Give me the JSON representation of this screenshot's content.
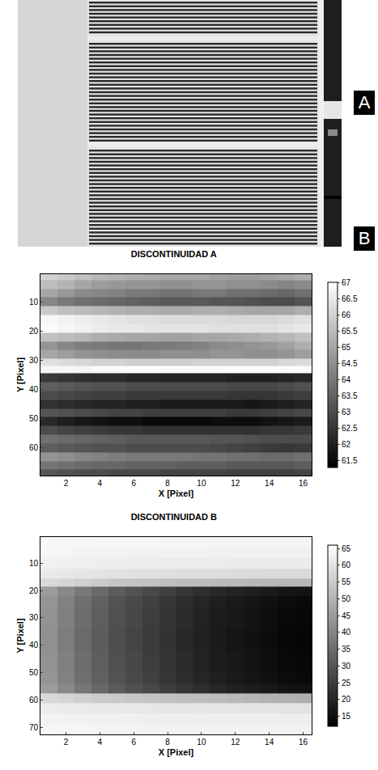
{
  "panel_labels": [
    "A",
    "B"
  ],
  "chart_data": [
    {
      "type": "heatmap",
      "title": "DISCONTINUIDAD A",
      "xlabel": "X [Pixel]",
      "ylabel": "Y [Pixel]",
      "xlim": [
        0.5,
        16.5
      ],
      "xticks": [
        2,
        4,
        6,
        8,
        10,
        12,
        14,
        16
      ],
      "ylim": [
        69.5,
        0.5
      ],
      "yticks": [
        10,
        20,
        30,
        40,
        50,
        60
      ],
      "x": [
        1,
        2,
        3,
        4,
        5,
        6,
        7,
        8,
        9,
        10,
        11,
        12,
        13,
        14,
        15,
        16
      ],
      "y": [
        1,
        4,
        7,
        10,
        13,
        16,
        19,
        22,
        25,
        28,
        31,
        33,
        36,
        39,
        42,
        45,
        48,
        51,
        54,
        57,
        60,
        63,
        66,
        69
      ],
      "z": [
        [
          66,
          65.8,
          65.6,
          65.4,
          65.3,
          65.2,
          65.1,
          65,
          65,
          65,
          64.9,
          64.8,
          64.8,
          64.9,
          65,
          65.2
        ],
        [
          65.5,
          65.3,
          65,
          64.8,
          64.7,
          64.6,
          64.6,
          64.5,
          64.5,
          64.6,
          64.6,
          64.5,
          64.5,
          64.4,
          64.3,
          64.4
        ],
        [
          65,
          64.7,
          64.4,
          64.3,
          64.2,
          64,
          64,
          63.9,
          63.9,
          64,
          64,
          63.8,
          63.8,
          63.7,
          63.6,
          63.8
        ],
        [
          64.3,
          64,
          63.8,
          63.7,
          63.6,
          63.5,
          63.4,
          63.3,
          63.3,
          63.3,
          63.2,
          63.2,
          63.1,
          63,
          63,
          63.2
        ],
        [
          65.8,
          65.6,
          65.5,
          65.4,
          65.3,
          65.2,
          65.2,
          65.1,
          65.1,
          65.2,
          65.2,
          65.1,
          65,
          65,
          65,
          65.2
        ],
        [
          66.8,
          66.7,
          66.6,
          66.5,
          66.4,
          66.3,
          66.3,
          66.2,
          66.2,
          66.2,
          66.2,
          66.1,
          66.1,
          66.1,
          66.2,
          66.3
        ],
        [
          66.9,
          66.8,
          66.7,
          66.6,
          66.5,
          66.5,
          66.4,
          66.4,
          66.4,
          66.4,
          66.3,
          66.3,
          66.3,
          66.3,
          66.4,
          66.5
        ],
        [
          65.6,
          65.5,
          65.4,
          65.2,
          65.1,
          65,
          65,
          64.9,
          64.9,
          65,
          65,
          65.1,
          65.2,
          65.3,
          65.4,
          65.6
        ],
        [
          64.6,
          64.3,
          64.1,
          64,
          63.9,
          63.9,
          64,
          64,
          64.1,
          64.2,
          64.4,
          64.5,
          64.6,
          64.7,
          64.9,
          65.2
        ],
        [
          65,
          64.8,
          64.6,
          64.5,
          64.4,
          64.4,
          64.4,
          64.5,
          64.5,
          64.5,
          64.6,
          64.6,
          64.5,
          64.5,
          64.6,
          64.8
        ],
        [
          66.3,
          66.2,
          66.1,
          66,
          66,
          65.9,
          65.9,
          65.9,
          65.9,
          66,
          66,
          66,
          66,
          66,
          66.1,
          66.2
        ],
        [
          66.8,
          66.8,
          66.8,
          66.9,
          66.9,
          66.9,
          66.9,
          66.9,
          66.9,
          66.9,
          66.9,
          66.9,
          66.9,
          66.9,
          66.9,
          66.9
        ],
        [
          62.6,
          62.5,
          62.4,
          62.3,
          62.3,
          62.2,
          62.2,
          62.1,
          62.1,
          62.1,
          62.1,
          62,
          62,
          62,
          62.1,
          62.2
        ],
        [
          63.4,
          63.3,
          63.2,
          63.1,
          63.1,
          63,
          63,
          63,
          63,
          63,
          63,
          62.9,
          62.9,
          62.9,
          63,
          63.1
        ],
        [
          63,
          62.9,
          62.8,
          62.7,
          62.7,
          62.6,
          62.6,
          62.6,
          62.6,
          62.6,
          62.6,
          62.5,
          62.5,
          62.5,
          62.6,
          62.7
        ],
        [
          62.4,
          62.3,
          62.2,
          62.1,
          62.1,
          62,
          62,
          61.9,
          61.9,
          61.9,
          61.9,
          61.9,
          61.8,
          61.9,
          62,
          62.1
        ],
        [
          63.2,
          63.1,
          63,
          62.9,
          62.8,
          62.8,
          62.7,
          62.7,
          62.7,
          62.7,
          62.7,
          62.6,
          62.6,
          62.7,
          62.8,
          62.9
        ],
        [
          62.2,
          62,
          61.8,
          61.7,
          61.6,
          61.6,
          61.5,
          61.5,
          61.5,
          61.5,
          61.6,
          61.6,
          61.6,
          61.7,
          61.8,
          61.9
        ],
        [
          63,
          62.8,
          62.7,
          62.6,
          62.5,
          62.5,
          62.4,
          62.4,
          62.4,
          62.4,
          62.4,
          62.4,
          62.4,
          62.5,
          62.5,
          62.6
        ],
        [
          63.8,
          63.7,
          63.6,
          63.5,
          63.4,
          63.3,
          63.3,
          63.3,
          63.3,
          63.3,
          63.2,
          63.2,
          63.1,
          63,
          63,
          63
        ],
        [
          63.4,
          63.3,
          63.2,
          63.1,
          63.1,
          63,
          63,
          63,
          63,
          63,
          62.9,
          62.8,
          62.7,
          62.6,
          62.5,
          62.6
        ],
        [
          64.6,
          64.5,
          64.3,
          64.2,
          64.1,
          64,
          64,
          64,
          64,
          63.9,
          63.9,
          63.8,
          63.8,
          63.7,
          63.7,
          63.8
        ],
        [
          63.9,
          63.8,
          63.7,
          63.6,
          63.6,
          63.5,
          63.5,
          63.5,
          63.4,
          63.4,
          63.4,
          63.3,
          63.3,
          63.3,
          63.3,
          63.4
        ],
        [
          63.2,
          63.1,
          63,
          63,
          62.9,
          62.9,
          62.9,
          62.8,
          62.8,
          62.8,
          62.8,
          62.7,
          62.7,
          62.7,
          62.7,
          62.8
        ]
      ],
      "colorbar_range": [
        61.3,
        67
      ],
      "colorbar_ticks": [
        61.5,
        62,
        62.5,
        63,
        63.5,
        64,
        64.5,
        65,
        65.5,
        66,
        66.5,
        67
      ]
    },
    {
      "type": "heatmap",
      "title": "DISCONTINUIDAD B",
      "xlabel": "X [Pixel]",
      "ylabel": "Y [Pixel]",
      "xlim": [
        0.5,
        16.5
      ],
      "xticks": [
        2,
        4,
        6,
        8,
        10,
        12,
        14,
        16
      ],
      "ylim": [
        72.5,
        0.5
      ],
      "yticks": [
        10,
        20,
        30,
        40,
        50,
        60,
        70
      ],
      "x": [
        1,
        2,
        3,
        4,
        5,
        6,
        7,
        8,
        9,
        10,
        11,
        12,
        13,
        14,
        15,
        16
      ],
      "y": [
        2,
        6,
        10,
        14,
        17,
        20,
        24,
        28,
        32,
        36,
        40,
        44,
        48,
        52,
        56,
        59,
        63,
        67,
        71
      ],
      "z": [
        [
          64.5,
          64.3,
          64.2,
          64.1,
          64,
          64,
          64,
          63.9,
          63.9,
          63.9,
          63.9,
          63.8,
          63.8,
          63.8,
          63.8,
          63.8
        ],
        [
          64,
          63.8,
          63.6,
          63.5,
          63.4,
          63.3,
          63.3,
          63.2,
          63.2,
          63.2,
          63.1,
          63.1,
          63.1,
          63.1,
          63,
          63
        ],
        [
          63,
          62.8,
          62.6,
          62.4,
          62.3,
          62.2,
          62.1,
          62,
          62,
          61.9,
          61.9,
          61.8,
          61.8,
          61.8,
          61.7,
          61.7
        ],
        [
          61.5,
          61,
          60.6,
          60.2,
          59.9,
          59.6,
          59.4,
          59.2,
          59,
          58.8,
          58.7,
          58.6,
          58.5,
          58.4,
          58.3,
          58.2
        ],
        [
          58,
          57,
          56,
          55,
          54,
          53.5,
          53,
          52.5,
          52,
          51.8,
          51.5,
          51.2,
          51,
          50.8,
          50.6,
          50.5
        ],
        [
          45,
          41,
          37.5,
          34.5,
          31.5,
          29.5,
          27.5,
          25.5,
          23.5,
          22,
          20.5,
          19.5,
          18.5,
          17.5,
          16.5,
          16
        ],
        [
          43.5,
          39.5,
          35.5,
          32.5,
          29.5,
          27.5,
          25.5,
          23.5,
          21.5,
          20,
          18.5,
          17.5,
          16.5,
          15.5,
          14.5,
          14
        ],
        [
          43,
          39,
          35,
          32,
          29,
          27,
          25,
          23,
          21,
          19.5,
          18,
          17,
          16,
          15,
          14,
          13.5
        ],
        [
          43,
          39,
          35,
          32,
          29,
          27,
          25,
          23,
          21,
          19.5,
          18,
          17,
          16,
          15,
          14,
          13.5
        ],
        [
          42.5,
          38.5,
          34.5,
          31.5,
          28.5,
          26.5,
          24.5,
          22.5,
          20.5,
          19,
          17.5,
          16.5,
          15.5,
          14.5,
          13.5,
          13
        ],
        [
          42.5,
          38.5,
          34.5,
          31.5,
          28.5,
          26.5,
          24.5,
          22.5,
          20.5,
          19,
          17.5,
          16.5,
          15.5,
          14.5,
          13.5,
          13
        ],
        [
          43,
          39,
          35,
          32,
          29,
          27,
          25,
          23,
          21,
          19.5,
          18,
          17,
          16,
          15,
          14,
          13.5
        ],
        [
          43,
          39,
          35,
          32,
          29,
          27,
          25,
          23,
          21,
          19.5,
          18,
          17,
          16,
          15,
          14,
          13.5
        ],
        [
          43.5,
          39.5,
          35.5,
          32.5,
          29.5,
          27.5,
          25.5,
          23.5,
          21.5,
          20,
          18.5,
          17.5,
          16.5,
          15.5,
          14.5,
          14
        ],
        [
          45,
          41,
          37,
          34,
          31,
          29,
          27,
          25,
          23,
          21.5,
          20,
          19,
          18,
          17,
          16,
          15.5
        ],
        [
          58,
          57,
          56,
          55,
          54.5,
          54,
          53.5,
          53,
          52.5,
          52,
          51.5,
          51,
          50.5,
          50,
          49.5,
          49
        ],
        [
          62,
          61.8,
          61.6,
          61.4,
          61.2,
          61,
          60.9,
          60.8,
          60.7,
          60.6,
          60.5,
          60.4,
          60.3,
          60.2,
          60.1,
          60
        ],
        [
          63.5,
          63.3,
          63.2,
          63,
          62.9,
          62.8,
          62.7,
          62.6,
          62.6,
          62.5,
          62.5,
          62.4,
          62.4,
          62.4,
          62.3,
          62.3
        ],
        [
          64,
          63.9,
          63.8,
          63.7,
          63.6,
          63.5,
          63.5,
          63.4,
          63.4,
          63.3,
          63.3,
          63.3,
          63.2,
          63.2,
          63.2,
          63.2
        ]
      ],
      "colorbar_range": [
        12,
        66
      ],
      "colorbar_ticks": [
        15,
        20,
        25,
        30,
        35,
        40,
        45,
        50,
        55,
        60,
        65
      ]
    }
  ]
}
